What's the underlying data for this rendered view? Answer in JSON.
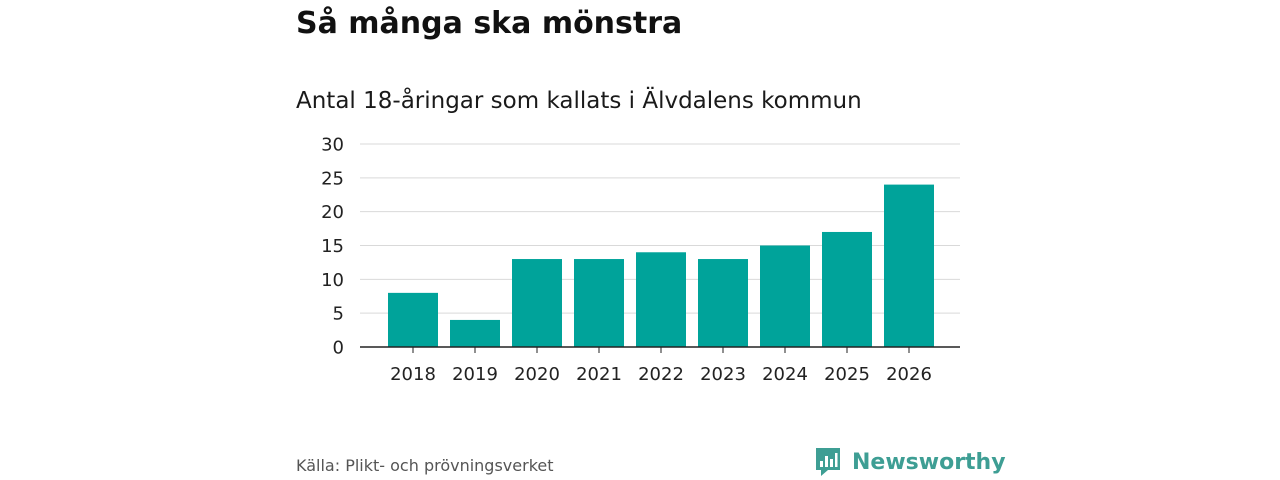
{
  "header": {
    "title": "Så många ska mönstra",
    "subtitle": "Antal 18-åringar som kallats i Älvdalens kommun"
  },
  "footer": {
    "source": "Källa: Plikt- och prövningsverket",
    "brand": "Newsworthy",
    "brand_icon": "bar-chart-speech-bubble-icon"
  },
  "colors": {
    "bar": "#00a39a",
    "brand": "#3e9e94",
    "grid": "#d9d9d9",
    "axis": "#222222"
  },
  "chart_data": {
    "type": "bar",
    "title": "Så många ska mönstra",
    "subtitle": "Antal 18-åringar som kallats i Älvdalens kommun",
    "categories": [
      "2018",
      "2019",
      "2020",
      "2021",
      "2022",
      "2023",
      "2024",
      "2025",
      "2026"
    ],
    "values": [
      8,
      4,
      13,
      13,
      14,
      13,
      15,
      17,
      24
    ],
    "xlabel": "",
    "ylabel": "",
    "ylim": [
      0,
      30
    ],
    "yticks": [
      "0",
      "5",
      "10",
      "15",
      "20",
      "25",
      "30"
    ],
    "grid": true,
    "legend": "none"
  }
}
